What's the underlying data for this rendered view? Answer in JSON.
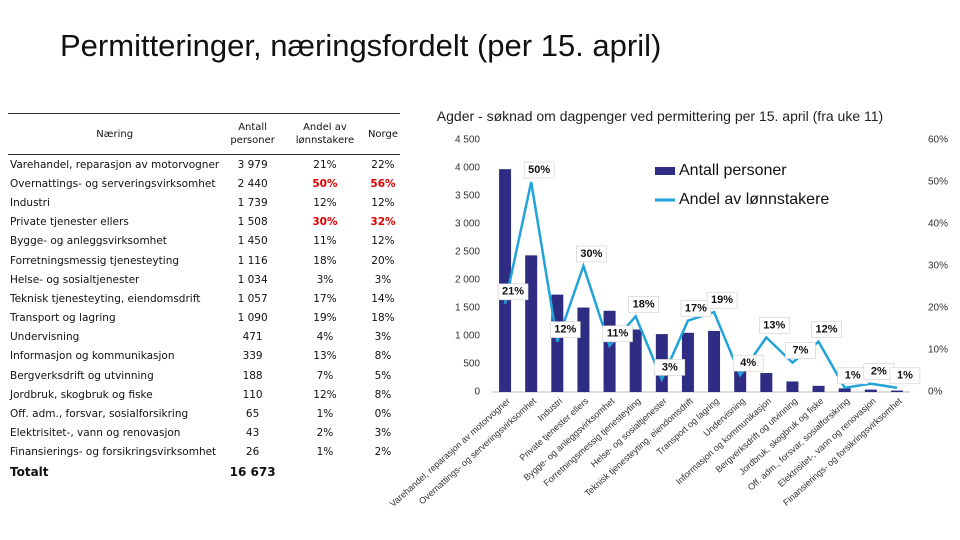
{
  "title": "Permitteringer, næringsfordelt (per 15. april)",
  "table": {
    "headers": [
      "Næring",
      "Antall personer",
      "Andel av lønnstakere",
      "Norge"
    ],
    "rows": [
      [
        "Varehandel, reparasjon av motorvogner",
        "3 979",
        "21%",
        "22%"
      ],
      [
        "Overnattings- og serveringsvirksomhet",
        "2 440",
        "50%",
        "56%"
      ],
      [
        "Industri",
        "1 739",
        "12%",
        "12%"
      ],
      [
        "Private tjenester ellers",
        "1 508",
        "30%",
        "32%"
      ],
      [
        "Bygge- og anleggsvirksomhet",
        "1 450",
        "11%",
        "12%"
      ],
      [
        "Forretningsmessig tjenesteyting",
        "1 116",
        "18%",
        "20%"
      ],
      [
        "Helse- og sosialtjenester",
        "1 034",
        "3%",
        "3%"
      ],
      [
        "Teknisk tjenesteyting, eiendomsdrift",
        "1 057",
        "17%",
        "14%"
      ],
      [
        "Transport og lagring",
        "1 090",
        "19%",
        "18%"
      ],
      [
        "Undervisning",
        "471",
        "4%",
        "3%"
      ],
      [
        "Informasjon og kommunikasjon",
        "339",
        "13%",
        "8%"
      ],
      [
        "Bergverksdrift og utvinning",
        "188",
        "7%",
        "5%"
      ],
      [
        "Jordbruk, skogbruk og fiske",
        "110",
        "12%",
        "8%"
      ],
      [
        "Off. adm., forsvar, sosialforsikring",
        "65",
        "1%",
        "0%"
      ],
      [
        "Elektrisitet-, vann og renovasjon",
        "43",
        "2%",
        "3%"
      ],
      [
        "Finansierings- og forsikringsvirksomhet",
        "26",
        "1%",
        "2%"
      ]
    ],
    "total": {
      "label": "Totalt",
      "antall": "16 673"
    }
  },
  "chart_data": {
    "type": "bar_line",
    "title": "Agder - søknad om dagpenger ved permittering per 15. april (fra uke 11)",
    "categories": [
      "Varehandel, reparasjon av motorvogner",
      "Overnattings- og serveringsvirksomhet",
      "Industri",
      "Private tjenester ellers",
      "Bygge- og anleggsvirksomhet",
      "Forretningsmessig tjenesteyting",
      "Helse- og sosialtjenester",
      "Teknisk tjenesteyting, eiendomsdrift",
      "Transport og lagring",
      "Undervisning",
      "Informasjon og kommunikasjon",
      "Bergverksdrift og utvinning",
      "Jordbruk, skogbruk og fiske",
      "Off. adm., forsvar, sosialforsikring",
      "Elektrisitet-, vann og renovasjon",
      "Finansierings- og forsikringsvirksomhet"
    ],
    "series": [
      {
        "name": "Antall personer",
        "color": "#2e2d83",
        "type": "bar",
        "axis": "y",
        "values": [
          3979,
          2440,
          1739,
          1508,
          1450,
          1116,
          1034,
          1057,
          1090,
          471,
          339,
          188,
          110,
          65,
          43,
          26
        ]
      },
      {
        "name": "Andel av lønnstakere",
        "color": "#1fa3d9",
        "type": "line",
        "axis": "y2",
        "values": [
          21,
          50,
          12,
          30,
          11,
          18,
          3,
          17,
          19,
          4,
          13,
          7,
          12,
          1,
          2,
          1
        ],
        "value_labels": [
          "21%",
          "50%",
          "12%",
          "30%",
          "11%",
          "18%",
          "3%",
          "17%",
          "19%",
          "4%",
          "13%",
          "7%",
          "12%",
          "1%",
          "2%",
          "1%"
        ]
      }
    ],
    "ylim": [
      0,
      4500
    ],
    "yticks": [
      0,
      500,
      {
        "value": 1000,
        "label": "1 000"
      },
      {
        "value": 1500,
        "label": "1 500"
      },
      {
        "value": 2000,
        "label": "2 000"
      },
      {
        "value": 2500,
        "label": "2 500"
      },
      {
        "value": 3000,
        "label": "3 000"
      },
      {
        "value": 3500,
        "label": "3 500"
      },
      {
        "value": 4000,
        "label": "4 000"
      },
      {
        "value": 4500,
        "label": "4 500"
      }
    ],
    "y2lim": [
      0,
      60
    ],
    "y2ticks": [
      {
        "value": 0,
        "label": "0%"
      },
      {
        "value": 10,
        "label": "10%"
      },
      {
        "value": 20,
        "label": "20%"
      },
      {
        "value": 30,
        "label": "30%"
      },
      {
        "value": 40,
        "label": "40%"
      },
      {
        "value": 50,
        "label": "50%"
      },
      {
        "value": 60,
        "label": "60%"
      }
    ],
    "legend": "top-right",
    "grid": false
  }
}
